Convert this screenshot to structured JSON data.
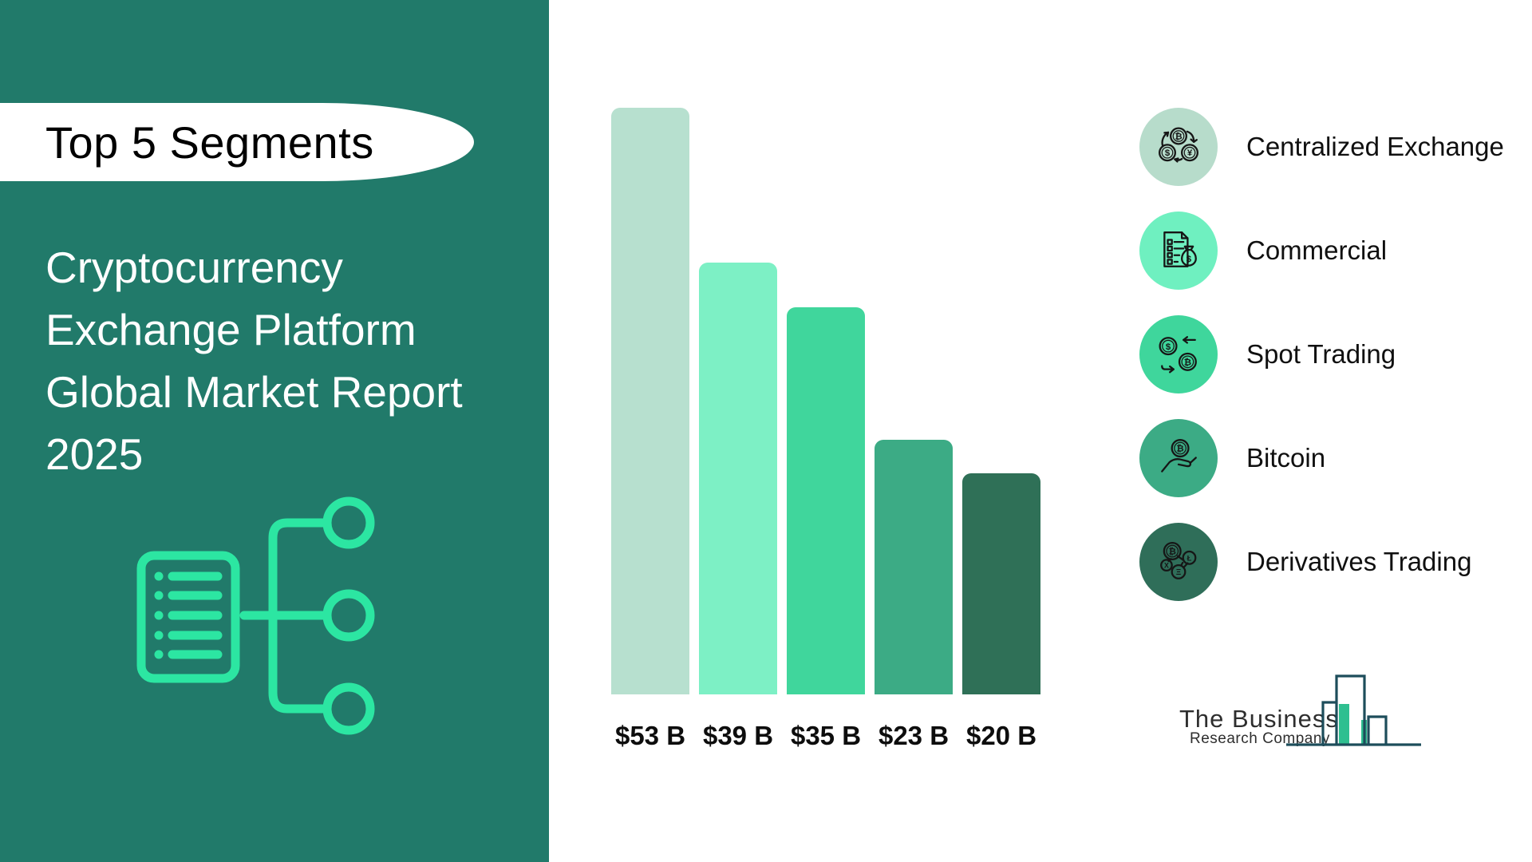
{
  "sidebar": {
    "badge": "Top 5 Segments",
    "title_lines": [
      "Cryptocurrency",
      "Exchange Platform",
      "Global Market Report",
      "2025"
    ],
    "icon": "report-mindmap-icon"
  },
  "chart_data": {
    "type": "bar",
    "title": "Top 5 Segments",
    "categories": [
      "Centralized Exchange",
      "Commercial",
      "Spot Trading",
      "Bitcoin",
      "Derivatives Trading"
    ],
    "values": [
      53,
      39,
      35,
      23,
      20
    ],
    "value_labels": [
      "$53 B",
      "$39 B",
      "$35 B",
      "$23 B",
      "$20 B"
    ],
    "bar_colors": [
      "#b7e0cf",
      "#7df0c5",
      "#40d69c",
      "#3cab85",
      "#2f7057"
    ],
    "xlabel": "",
    "ylabel": "",
    "grid": false,
    "legend_position": "right"
  },
  "legend": {
    "items": [
      {
        "label": "Centralized Exchange",
        "color": "#b7dccb",
        "icon": "currency-exchange-cycle-icon"
      },
      {
        "label": "Commercial",
        "color": "#6ff0c0",
        "icon": "document-moneybag-icon"
      },
      {
        "label": "Spot Trading",
        "color": "#3fd69c",
        "icon": "dollar-bitcoin-swap-icon"
      },
      {
        "label": "Bitcoin",
        "color": "#3cab85",
        "icon": "hand-bitcoin-icon"
      },
      {
        "label": "Derivatives Trading",
        "color": "#2f6e59",
        "icon": "crypto-coins-network-icon"
      }
    ]
  },
  "logo": {
    "line1": "The Business",
    "line2": "Research Company"
  },
  "colors": {
    "sidebar_bg": "#217a6a",
    "sidebar_icon_stroke": "#2ce6a2",
    "logo_outline": "#1d4d5b",
    "logo_green": "#2fbf90"
  }
}
